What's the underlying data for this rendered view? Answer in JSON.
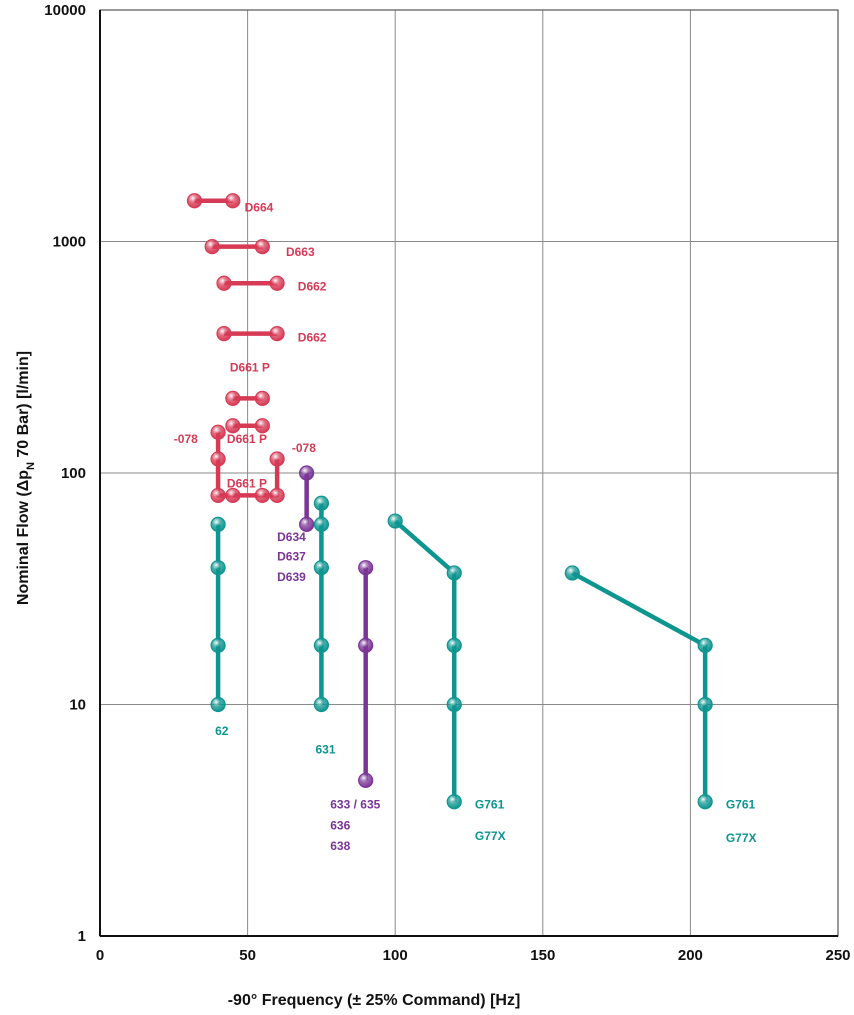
{
  "colors": {
    "red": "#d63a55",
    "teal": "#0e9590",
    "purple": "#7a3596",
    "grid": "#8a8a8a"
  },
  "chart_data": {
    "type": "line",
    "xlabel": "-90° Frequency (± 25% Command) [Hz]",
    "ylabel_parts": {
      "pre": "Nominal Flow (",
      "delta": "Δ",
      "p": "p",
      "sub": "N",
      "post": " 70 Bar) [l/min]"
    },
    "xlim": [
      0,
      250
    ],
    "ylim": [
      1,
      10000
    ],
    "yscale": "log",
    "grid": true,
    "x_ticks": [
      "0",
      "50",
      "100",
      "150",
      "200",
      "250"
    ],
    "y_ticks": [
      "1",
      "10",
      "100",
      "1000",
      "10000"
    ],
    "series": [
      {
        "color": "red",
        "points": [
          [
            32,
            1500
          ],
          [
            45,
            1500
          ]
        ]
      },
      {
        "color": "red",
        "points": [
          [
            38,
            950
          ],
          [
            55,
            950
          ]
        ]
      },
      {
        "color": "red",
        "points": [
          [
            42,
            660
          ],
          [
            60,
            660
          ]
        ]
      },
      {
        "color": "red",
        "points": [
          [
            42,
            400
          ],
          [
            60,
            400
          ]
        ]
      },
      {
        "color": "red",
        "points": [
          [
            45,
            210
          ],
          [
            55,
            210
          ]
        ]
      },
      {
        "color": "red",
        "points": [
          [
            45,
            160
          ],
          [
            55,
            160
          ]
        ]
      },
      {
        "color": "red",
        "points": [
          [
            40,
            150
          ],
          [
            40,
            115
          ],
          [
            40,
            80
          ],
          [
            45,
            80
          ],
          [
            55,
            80
          ],
          [
            60,
            80
          ],
          [
            60,
            115
          ]
        ]
      },
      {
        "color": "teal",
        "points": [
          [
            40,
            60
          ],
          [
            40,
            39
          ],
          [
            40,
            18
          ],
          [
            40,
            10
          ]
        ]
      },
      {
        "color": "purple",
        "points": [
          [
            70,
            100
          ],
          [
            70,
            60
          ]
        ]
      },
      {
        "color": "teal",
        "points": [
          [
            75,
            74
          ],
          [
            75,
            60
          ],
          [
            75,
            39
          ],
          [
            75,
            18
          ],
          [
            75,
            10
          ]
        ]
      },
      {
        "color": "purple",
        "points": [
          [
            90,
            39
          ],
          [
            90,
            18
          ],
          [
            90,
            4.7
          ]
        ]
      },
      {
        "color": "teal",
        "points": [
          [
            100,
            62
          ],
          [
            120,
            37
          ],
          [
            120,
            18
          ],
          [
            120,
            10
          ],
          [
            120,
            3.8
          ]
        ]
      },
      {
        "color": "teal",
        "points": [
          [
            160,
            37
          ],
          [
            205,
            18
          ],
          [
            205,
            10
          ],
          [
            205,
            3.8
          ]
        ]
      }
    ],
    "annotations": [
      {
        "text": "D664",
        "x": 49,
        "y": 1400,
        "color": "red"
      },
      {
        "text": "D663",
        "x": 63,
        "y": 900,
        "color": "red"
      },
      {
        "text": "D662",
        "x": 67,
        "y": 640,
        "color": "red"
      },
      {
        "text": "D662",
        "x": 67,
        "y": 385,
        "color": "red"
      },
      {
        "text": "D661 P",
        "x": 44,
        "y": 285,
        "color": "red"
      },
      {
        "text": "-078",
        "x": 25,
        "y": 140,
        "color": "red"
      },
      {
        "text": "D661 P",
        "x": 43,
        "y": 140,
        "color": "red"
      },
      {
        "text": "-078",
        "x": 65,
        "y": 128,
        "color": "red"
      },
      {
        "text": "D661 P",
        "x": 43,
        "y": 90,
        "color": "red"
      },
      {
        "text": "D634",
        "x": 60,
        "y": 53,
        "color": "purple"
      },
      {
        "text": "D637",
        "x": 60,
        "y": 43.5,
        "color": "purple"
      },
      {
        "text": "D639",
        "x": 60,
        "y": 35.5,
        "color": "purple"
      },
      {
        "text": "62",
        "x": 39,
        "y": 7.7,
        "color": "teal"
      },
      {
        "text": "631",
        "x": 73,
        "y": 6.4,
        "color": "teal"
      },
      {
        "text": "633 / 635",
        "x": 78,
        "y": 3.7,
        "color": "purple"
      },
      {
        "text": "636",
        "x": 78,
        "y": 3.0,
        "color": "purple"
      },
      {
        "text": "638",
        "x": 78,
        "y": 2.45,
        "color": "purple"
      },
      {
        "text": "G761",
        "x": 127,
        "y": 3.7,
        "color": "teal"
      },
      {
        "text": "G77X",
        "x": 127,
        "y": 2.7,
        "color": "teal"
      },
      {
        "text": "G761",
        "x": 212,
        "y": 3.7,
        "color": "teal"
      },
      {
        "text": "G77X",
        "x": 212,
        "y": 2.65,
        "color": "teal"
      }
    ]
  }
}
